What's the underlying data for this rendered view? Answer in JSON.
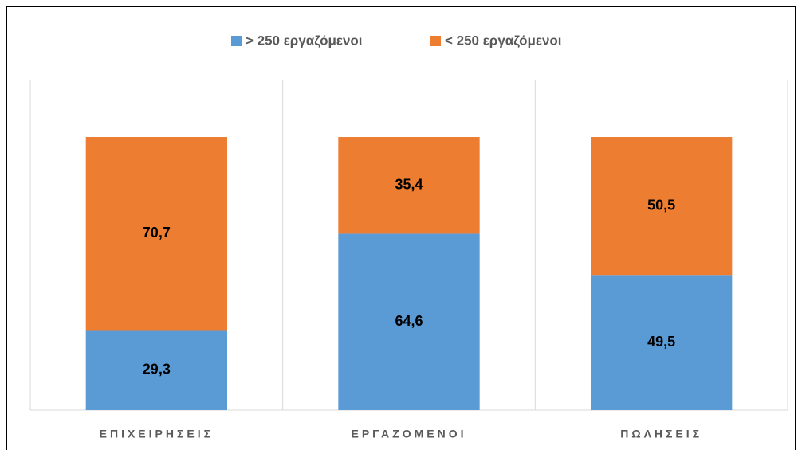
{
  "chart_data": {
    "type": "stacked_bar",
    "categories": [
      "ΕΠΙΧΕΙΡΗΣΕΙΣ",
      "ΕΡΓΑΖΟΜΕΝΟΙ",
      "ΠΩΛΗΣΕΙΣ"
    ],
    "series": [
      {
        "name": "> 250 εργαζόμενοι",
        "color": "#5b9bd5",
        "values": [
          29.3,
          64.6,
          49.5
        ],
        "value_labels": [
          "29,3",
          "64,6",
          "49,5"
        ]
      },
      {
        "name": "< 250 εργαζόμενοι",
        "color": "#ed7d31",
        "values": [
          70.7,
          35.4,
          50.5
        ],
        "value_labels": [
          "70,7",
          "35,4",
          "50,5"
        ]
      }
    ],
    "ylim": [
      0,
      121
    ],
    "legend": "top"
  }
}
